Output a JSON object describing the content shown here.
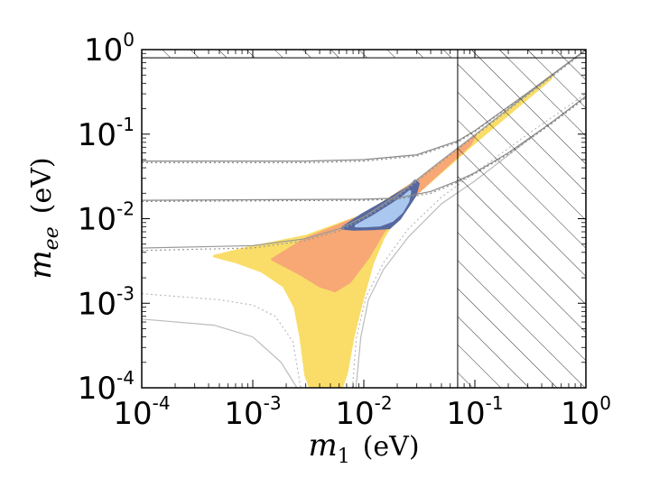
{
  "chart_data": {
    "type": "scatter",
    "xscale": "log",
    "yscale": "log",
    "xlim": [
      0.0001,
      1
    ],
    "ylim": [
      0.0001,
      1
    ],
    "x_tick_values": [
      0.0001,
      0.001,
      0.01,
      0.1,
      1
    ],
    "y_tick_values": [
      0.0001,
      0.001,
      0.01,
      0.1,
      1
    ],
    "x_tick_labels": [
      {
        "base": "10",
        "exp": "-4"
      },
      {
        "base": "10",
        "exp": "-3"
      },
      {
        "base": "10",
        "exp": "-2"
      },
      {
        "base": "10",
        "exp": "-1"
      },
      {
        "base": "10",
        "exp": "0"
      }
    ],
    "y_tick_labels": [
      {
        "base": "10",
        "exp": "-4"
      },
      {
        "base": "10",
        "exp": "-3"
      },
      {
        "base": "10",
        "exp": "-2"
      },
      {
        "base": "10",
        "exp": "-1"
      },
      {
        "base": "10",
        "exp": "0"
      }
    ],
    "xlabel": {
      "symbol": "m",
      "subscript": "1",
      "unit": "(eV)"
    },
    "ylabel": {
      "symbol": "m",
      "subscript": "ee",
      "unit": "(eV)"
    },
    "excluded_regions": [
      {
        "name": "m1-exclusion",
        "x_min": 0.07,
        "x_max": 1,
        "y_min": 0.0001,
        "y_max": 1
      },
      {
        "name": "mee-exclusion",
        "x_min": 0.0001,
        "x_max": 1,
        "y_min": 0.8,
        "y_max": 1
      }
    ],
    "series": [
      {
        "name": "yellow-region",
        "color": "#f9dd68",
        "polygon": [
          [
            0.00045,
            0.0036
          ],
          [
            0.0009,
            0.0045
          ],
          [
            0.003,
            0.0062
          ],
          [
            0.01,
            0.011
          ],
          [
            0.03,
            0.028
          ],
          [
            0.1,
            0.095
          ],
          [
            0.5,
            0.5
          ],
          [
            0.47,
            0.44
          ],
          [
            0.1,
            0.08
          ],
          [
            0.03,
            0.02
          ],
          [
            0.02,
            0.011
          ],
          [
            0.015,
            0.006
          ],
          [
            0.012,
            0.003
          ],
          [
            0.0095,
            0.001
          ],
          [
            0.008,
            0.0004
          ],
          [
            0.007,
            0.00015
          ],
          [
            0.0063,
            0.0001
          ],
          [
            0.0033,
            0.0001
          ],
          [
            0.003,
            0.00014
          ],
          [
            0.0027,
            0.0004
          ],
          [
            0.0024,
            0.0009
          ],
          [
            0.0019,
            0.0016
          ],
          [
            0.0012,
            0.0024
          ],
          [
            0.0007,
            0.0031
          ]
        ]
      },
      {
        "name": "orange-region",
        "color": "#f7a875",
        "polygon": [
          [
            0.0015,
            0.0033
          ],
          [
            0.003,
            0.0058
          ],
          [
            0.01,
            0.011
          ],
          [
            0.03,
            0.028
          ],
          [
            0.1,
            0.095
          ],
          [
            0.09,
            0.075
          ],
          [
            0.03,
            0.02
          ],
          [
            0.02,
            0.012
          ],
          [
            0.015,
            0.007
          ],
          [
            0.011,
            0.0035
          ],
          [
            0.0075,
            0.0018
          ],
          [
            0.0055,
            0.0014
          ],
          [
            0.004,
            0.0016
          ],
          [
            0.0027,
            0.0022
          ]
        ]
      },
      {
        "name": "dark-blue-region",
        "color": "#56689e",
        "polygon": [
          [
            0.0065,
            0.0079
          ],
          [
            0.0095,
            0.011
          ],
          [
            0.015,
            0.0155
          ],
          [
            0.02,
            0.0195
          ],
          [
            0.026,
            0.024
          ],
          [
            0.029,
            0.028
          ],
          [
            0.031,
            0.026
          ],
          [
            0.029,
            0.019
          ],
          [
            0.025,
            0.014
          ],
          [
            0.021,
            0.01
          ],
          [
            0.017,
            0.0078
          ],
          [
            0.012,
            0.0076
          ],
          [
            0.008,
            0.0075
          ],
          [
            0.0064,
            0.0077
          ]
        ]
      },
      {
        "name": "light-blue-region",
        "color": "#a9c7ef",
        "polygon": [
          [
            0.0085,
            0.0082
          ],
          [
            0.012,
            0.0105
          ],
          [
            0.017,
            0.014
          ],
          [
            0.022,
            0.0175
          ],
          [
            0.026,
            0.021
          ],
          [
            0.025,
            0.016
          ],
          [
            0.022,
            0.012
          ],
          [
            0.018,
            0.0095
          ],
          [
            0.014,
            0.0084
          ],
          [
            0.01,
            0.0082
          ]
        ]
      }
    ],
    "reference_lines": [
      {
        "name": "upper-solid-curve",
        "style": "solid",
        "color": "#999999",
        "points": [
          [
            0.0001,
            0.0045
          ],
          [
            0.001,
            0.0048
          ],
          [
            0.003,
            0.0058
          ],
          [
            0.006,
            0.0076
          ],
          [
            0.01,
            0.0105
          ],
          [
            0.02,
            0.019
          ],
          [
            0.05,
            0.049
          ],
          [
            0.1,
            0.098
          ],
          [
            0.3,
            0.3
          ],
          [
            1,
            1
          ]
        ]
      },
      {
        "name": "upper-dotted-curve",
        "style": "dotted",
        "color": "#999999",
        "points": [
          [
            0.0001,
            0.0042
          ],
          [
            0.001,
            0.0045
          ],
          [
            0.003,
            0.0055
          ],
          [
            0.006,
            0.0072
          ],
          [
            0.01,
            0.01
          ],
          [
            0.02,
            0.018
          ],
          [
            0.05,
            0.047
          ],
          [
            0.1,
            0.095
          ],
          [
            0.3,
            0.29
          ],
          [
            1,
            0.97
          ]
        ]
      },
      {
        "name": "steep-solid-curve",
        "style": "solid",
        "color": "#bbbbbb",
        "points": [
          [
            0.0001,
            0.00065
          ],
          [
            0.00045,
            0.00055
          ],
          [
            0.001,
            0.0004
          ],
          [
            0.0018,
            0.0002
          ],
          [
            0.0025,
            0.0001
          ]
        ]
      },
      {
        "name": "steep-dotted-curve",
        "style": "dotted",
        "color": "#bbbbbb",
        "points": [
          [
            0.0001,
            0.0013
          ],
          [
            0.0005,
            0.0011
          ],
          [
            0.001,
            0.00095
          ],
          [
            0.0016,
            0.0007
          ],
          [
            0.0023,
            0.00035
          ],
          [
            0.0027,
            0.0001
          ]
        ]
      },
      {
        "name": "inner-steep-solid-curve",
        "style": "solid",
        "color": "#bbbbbb",
        "points": [
          [
            0.0085,
            0.0001
          ],
          [
            0.0094,
            0.0004
          ],
          [
            0.011,
            0.0011
          ],
          [
            0.015,
            0.0025
          ],
          [
            0.025,
            0.006
          ],
          [
            0.05,
            0.015
          ],
          [
            0.1,
            0.028
          ],
          [
            0.3,
            0.085
          ],
          [
            1,
            0.28
          ]
        ]
      },
      {
        "name": "inner-steep-dotted-curve",
        "style": "dotted",
        "color": "#bbbbbb",
        "points": [
          [
            0.0079,
            0.0001
          ],
          [
            0.0086,
            0.0004
          ],
          [
            0.0105,
            0.0012
          ],
          [
            0.015,
            0.003
          ],
          [
            0.025,
            0.0075
          ],
          [
            0.05,
            0.018
          ],
          [
            0.1,
            0.035
          ],
          [
            0.3,
            0.1
          ],
          [
            1,
            0.3
          ]
        ]
      },
      {
        "name": "horizontal-band-solid-top",
        "style": "solid",
        "color": "#888888",
        "points": [
          [
            0.0001,
            0.048
          ],
          [
            0.003,
            0.048
          ],
          [
            0.01,
            0.05
          ],
          [
            0.03,
            0.057
          ],
          [
            0.07,
            0.083
          ],
          [
            0.1,
            0.11
          ],
          [
            0.3,
            0.31
          ],
          [
            1,
            1
          ]
        ]
      },
      {
        "name": "horizontal-band-dotted-top",
        "style": "dotted",
        "color": "#888888",
        "points": [
          [
            0.0001,
            0.046
          ],
          [
            0.003,
            0.046
          ],
          [
            0.01,
            0.048
          ],
          [
            0.03,
            0.055
          ],
          [
            0.07,
            0.08
          ],
          [
            0.1,
            0.107
          ],
          [
            0.3,
            0.305
          ],
          [
            1,
            0.99
          ]
        ]
      },
      {
        "name": "horizontal-band-solid-mid",
        "style": "solid",
        "color": "#888888",
        "points": [
          [
            0.0001,
            0.0165
          ],
          [
            0.01,
            0.017
          ],
          [
            0.02,
            0.0175
          ],
          [
            0.04,
            0.021
          ],
          [
            0.07,
            0.028
          ],
          [
            0.1,
            0.035
          ],
          [
            0.2,
            0.06
          ],
          [
            0.5,
            0.14
          ],
          [
            1,
            0.28
          ]
        ]
      },
      {
        "name": "horizontal-band-dotted-mid",
        "style": "dotted",
        "color": "#888888",
        "points": [
          [
            0.0001,
            0.016
          ],
          [
            0.01,
            0.0165
          ],
          [
            0.02,
            0.017
          ],
          [
            0.04,
            0.02
          ],
          [
            0.07,
            0.027
          ],
          [
            0.1,
            0.034
          ],
          [
            0.2,
            0.058
          ],
          [
            0.5,
            0.135
          ],
          [
            1,
            0.27
          ]
        ]
      }
    ]
  }
}
